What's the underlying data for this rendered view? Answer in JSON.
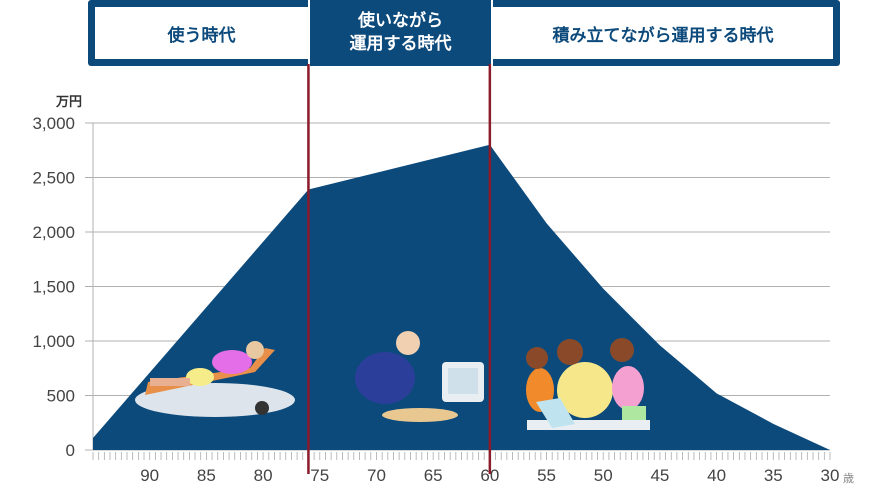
{
  "header": {
    "phases": [
      {
        "label": "使う時代"
      },
      {
        "label": "使いながら\n運用する時代",
        "line1": "使いながら",
        "line2": "運用する時代"
      },
      {
        "label": "積み立てながら運用する時代"
      }
    ]
  },
  "colors": {
    "area": "#0d4a7c",
    "divider": "#8b1a2a",
    "grid": "#b0b0b0"
  },
  "chart_data": {
    "type": "area",
    "ylabel": "万円",
    "xlabel": "歳",
    "ylim": [
      0,
      3000
    ],
    "xlim": [
      95,
      30
    ],
    "x_reversed": true,
    "grid": true,
    "yticks": [
      "0",
      "500",
      "1,000",
      "1,500",
      "2,000",
      "2,500",
      "3,000"
    ],
    "xticks": [
      "90",
      "85",
      "80",
      "75",
      "70",
      "65",
      "60",
      "55",
      "50",
      "45",
      "40",
      "35",
      "30"
    ],
    "x": [
      95,
      76,
      60,
      55,
      50,
      45,
      40,
      35,
      30
    ],
    "values": [
      110,
      2390,
      2800,
      2080,
      1480,
      960,
      520,
      240,
      0
    ],
    "phase_boundaries": [
      76,
      60
    ],
    "illustrations": [
      "retiree-relaxing-icon",
      "senior-at-computer-icon",
      "family-reading-icon"
    ]
  }
}
